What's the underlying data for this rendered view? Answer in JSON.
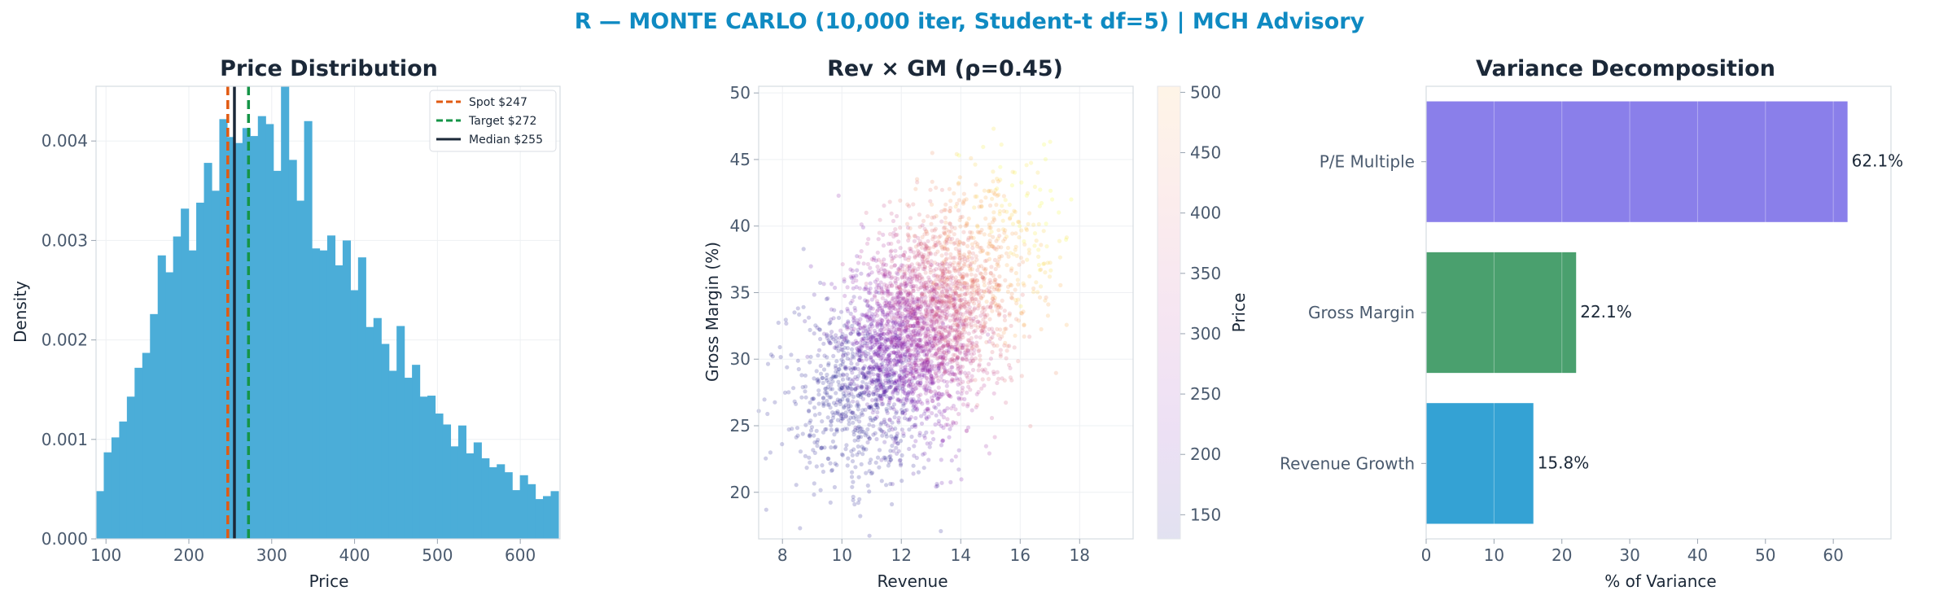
{
  "figure": {
    "suptitle": "R — MONTE CARLO (10,000 iter, Student-t df=5) | MCH Advisory",
    "suptitle_color": "#0f8ac2"
  },
  "chart_data": [
    {
      "type": "histogram",
      "title": "Price Distribution",
      "xlabel": "Price",
      "ylabel": "Density",
      "xlim": [
        88,
        648
      ],
      "ylim": [
        0,
        0.00455
      ],
      "xticks": [
        100,
        200,
        300,
        400,
        500,
        600
      ],
      "yticks": [
        0.0,
        0.001,
        0.002,
        0.003,
        0.004
      ],
      "ytick_labels": [
        "0.000",
        "0.001",
        "0.002",
        "0.003",
        "0.004"
      ],
      "bin_start": 88,
      "bin_width": 9.3,
      "densities": [
        0.00048,
        0.00087,
        0.00102,
        0.00118,
        0.00143,
        0.00172,
        0.00187,
        0.00226,
        0.00285,
        0.00268,
        0.00304,
        0.00332,
        0.0029,
        0.00338,
        0.00378,
        0.0035,
        0.00422,
        0.00404,
        0.00398,
        0.00413,
        0.00405,
        0.00425,
        0.00417,
        0.0037,
        0.0046,
        0.00381,
        0.0034,
        0.0042,
        0.00292,
        0.0029,
        0.00305,
        0.00275,
        0.003,
        0.0025,
        0.00283,
        0.00213,
        0.00222,
        0.00196,
        0.00169,
        0.00214,
        0.00162,
        0.00175,
        0.00143,
        0.00144,
        0.00126,
        0.00115,
        0.00093,
        0.00114,
        0.00086,
        0.00097,
        0.00081,
        0.00072,
        0.00075,
        0.00067,
        0.00049,
        0.00064,
        0.00055,
        0.0004,
        0.00043,
        0.00048
      ],
      "bar_color": "#4badd8",
      "vlines": [
        {
          "label": "Spot $247",
          "x": 247,
          "color": "#e15a11",
          "style": "dashed"
        },
        {
          "label": "Target $272",
          "x": 272,
          "color": "#159447",
          "style": "dashed"
        },
        {
          "label": "Median $255",
          "x": 255,
          "color": "#1b2838",
          "style": "solid"
        }
      ],
      "legend": "top-right",
      "grid": true
    },
    {
      "type": "scatter",
      "title": "Rev × GM (ρ=0.45)",
      "xlabel": "Revenue",
      "ylabel": "Gross Margin (%)",
      "xlim": [
        7.2,
        19.8
      ],
      "ylim": [
        16.5,
        50.5
      ],
      "xticks": [
        8,
        10,
        12,
        14,
        16,
        18
      ],
      "yticks": [
        20,
        25,
        30,
        35,
        40,
        45,
        50
      ],
      "n_points": 10000,
      "rev_mean": 12.5,
      "rev_sd": 1.7,
      "gm_mean": 32,
      "gm_sd": 4.6,
      "rho": 0.45,
      "colorbar": {
        "label": "Price",
        "range": [
          130,
          505
        ],
        "ticks": [
          150,
          200,
          250,
          300,
          350,
          400,
          450,
          500
        ],
        "colormap": "plasma"
      },
      "alpha": 0.2,
      "grid": true
    },
    {
      "type": "bar",
      "orientation": "horizontal",
      "title": "Variance Decomposition",
      "xlabel": "% of Variance",
      "xlim": [
        0,
        68.5
      ],
      "xticks": [
        0,
        10,
        20,
        30,
        40,
        50,
        60
      ],
      "categories": [
        "P/E Multiple",
        "Gross Margin",
        "Revenue Growth"
      ],
      "values": [
        62.1,
        22.1,
        15.8
      ],
      "value_labels": [
        "62.1%",
        "22.1%",
        "15.8%"
      ],
      "colors": [
        "#8a7fea",
        "#4aa06e",
        "#34a2d4"
      ],
      "grid": true
    }
  ]
}
